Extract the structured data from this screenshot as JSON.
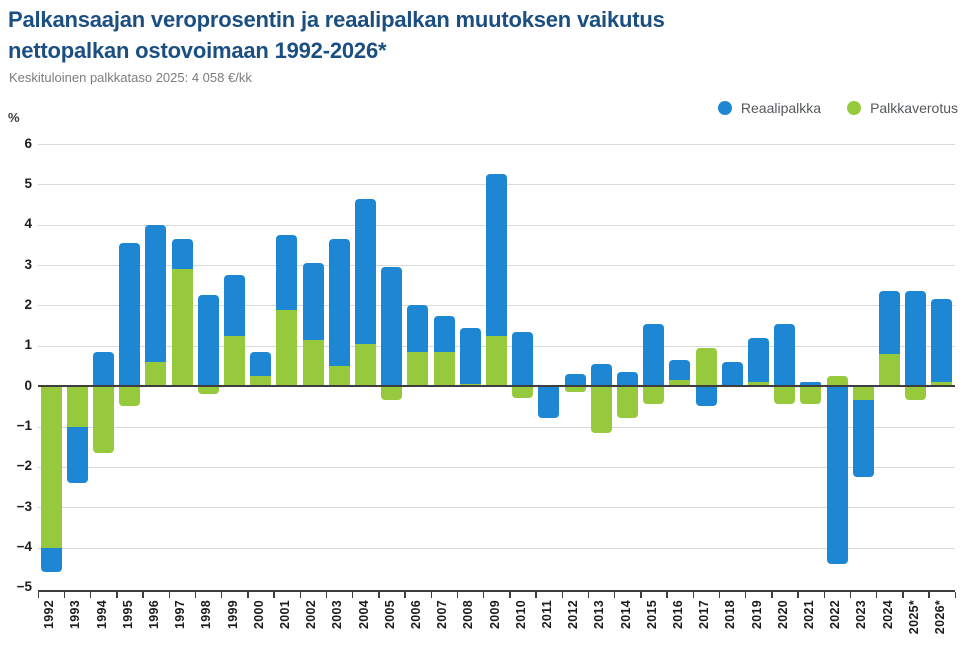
{
  "header": {
    "title_line1": "Palkansaajan veroprosentin ja reaalipalkan muutoksen vaikutus",
    "title_line2": "nettopalkan ostovoimaan 1992-2026*",
    "subtitle": "Keskituloinen palkkataso 2025: 4 058 €/kk"
  },
  "axis": {
    "unit_label": "%"
  },
  "colors": {
    "title": "#1b4f82",
    "reaalipalkka_blue": "#1e87d3",
    "palkkaverotus_green": "#97c93c",
    "gridline": "#dadada",
    "axis_dark": "#3e3e3e"
  },
  "chart_data": {
    "type": "bar",
    "stacked": true,
    "title": "Palkansaajan veroprosentin ja reaalipalkan muutoksen vaikutus nettopalkan ostovoimaan 1992-2026*",
    "subtitle": "Keskituloinen palkkataso 2025: 4 058 €/kk",
    "ylabel": "%",
    "ylim": [
      -5,
      6
    ],
    "yticks": [
      6,
      5,
      4,
      3,
      2,
      1,
      0,
      -1,
      -2,
      -3,
      -4,
      -5
    ],
    "grid": true,
    "legend_position": "top-right",
    "categories": [
      "1992",
      "1993",
      "1994",
      "1995",
      "1996",
      "1997",
      "1998",
      "1999",
      "2000",
      "2001",
      "2002",
      "2003",
      "2004",
      "2005",
      "2006",
      "2007",
      "2008",
      "2009",
      "2010",
      "2011",
      "2012",
      "2013",
      "2014",
      "2015",
      "2016",
      "2017",
      "2018",
      "2019",
      "2020",
      "2021",
      "2022",
      "2023",
      "2024",
      "2025*",
      "2026*"
    ],
    "series": [
      {
        "name": "Reaalipalkka",
        "color": "#1e87d3",
        "values": [
          -0.6,
          -1.4,
          0.85,
          3.55,
          3.4,
          0.75,
          2.25,
          1.5,
          0.6,
          1.85,
          1.9,
          3.15,
          3.6,
          2.95,
          1.15,
          0.9,
          1.4,
          4.0,
          1.35,
          -0.8,
          0.3,
          0.55,
          0.35,
          1.55,
          0.5,
          -0.5,
          0.6,
          1.1,
          1.55,
          0.1,
          -4.4,
          -1.9,
          1.55,
          2.35,
          2.05
        ]
      },
      {
        "name": "Palkkaverotus",
        "color": "#97c93c",
        "values": [
          -4.0,
          -1.0,
          -1.65,
          -0.5,
          0.6,
          2.9,
          -0.2,
          1.25,
          0.25,
          1.9,
          1.15,
          0.5,
          1.05,
          -0.35,
          0.85,
          0.85,
          0.05,
          1.25,
          -0.3,
          0,
          -0.15,
          -1.15,
          -0.8,
          -0.45,
          0.15,
          0.95,
          0,
          0.1,
          -0.45,
          -0.45,
          0.25,
          -0.35,
          0.8,
          -0.35,
          0.1
        ]
      }
    ]
  }
}
